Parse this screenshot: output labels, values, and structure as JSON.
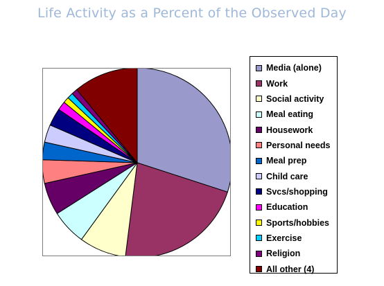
{
  "chart_data": {
    "type": "pie",
    "title": "Life Activity as a Percent of the Observed Day",
    "legend_position": "right",
    "slices": [
      {
        "label": "Media (alone)",
        "value": 30.0,
        "color": "#9999cc"
      },
      {
        "label": "Work",
        "value": 22.0,
        "color": "#993366"
      },
      {
        "label": "Social activity",
        "value": 8.0,
        "color": "#ffffcc"
      },
      {
        "label": "Meal eating",
        "value": 6.0,
        "color": "#ccffff"
      },
      {
        "label": "Housework",
        "value": 5.5,
        "color": "#660066"
      },
      {
        "label": "Personal needs",
        "value": 4.0,
        "color": "#ff8080"
      },
      {
        "label": "Meal prep",
        "value": 3.0,
        "color": "#0066cc"
      },
      {
        "label": "Child care",
        "value": 3.0,
        "color": "#ccccff"
      },
      {
        "label": "Svcs/shopping",
        "value": 3.0,
        "color": "#000080"
      },
      {
        "label": "Education",
        "value": 1.5,
        "color": "#ff00ff"
      },
      {
        "label": "Sports/hobbies",
        "value": 1.0,
        "color": "#ffff00"
      },
      {
        "label": "Exercise",
        "value": 1.0,
        "color": "#00ccff"
      },
      {
        "label": "Religion",
        "value": 1.0,
        "color": "#800080"
      },
      {
        "label": "All other (4)",
        "value": 11.0,
        "color": "#800000"
      }
    ]
  }
}
